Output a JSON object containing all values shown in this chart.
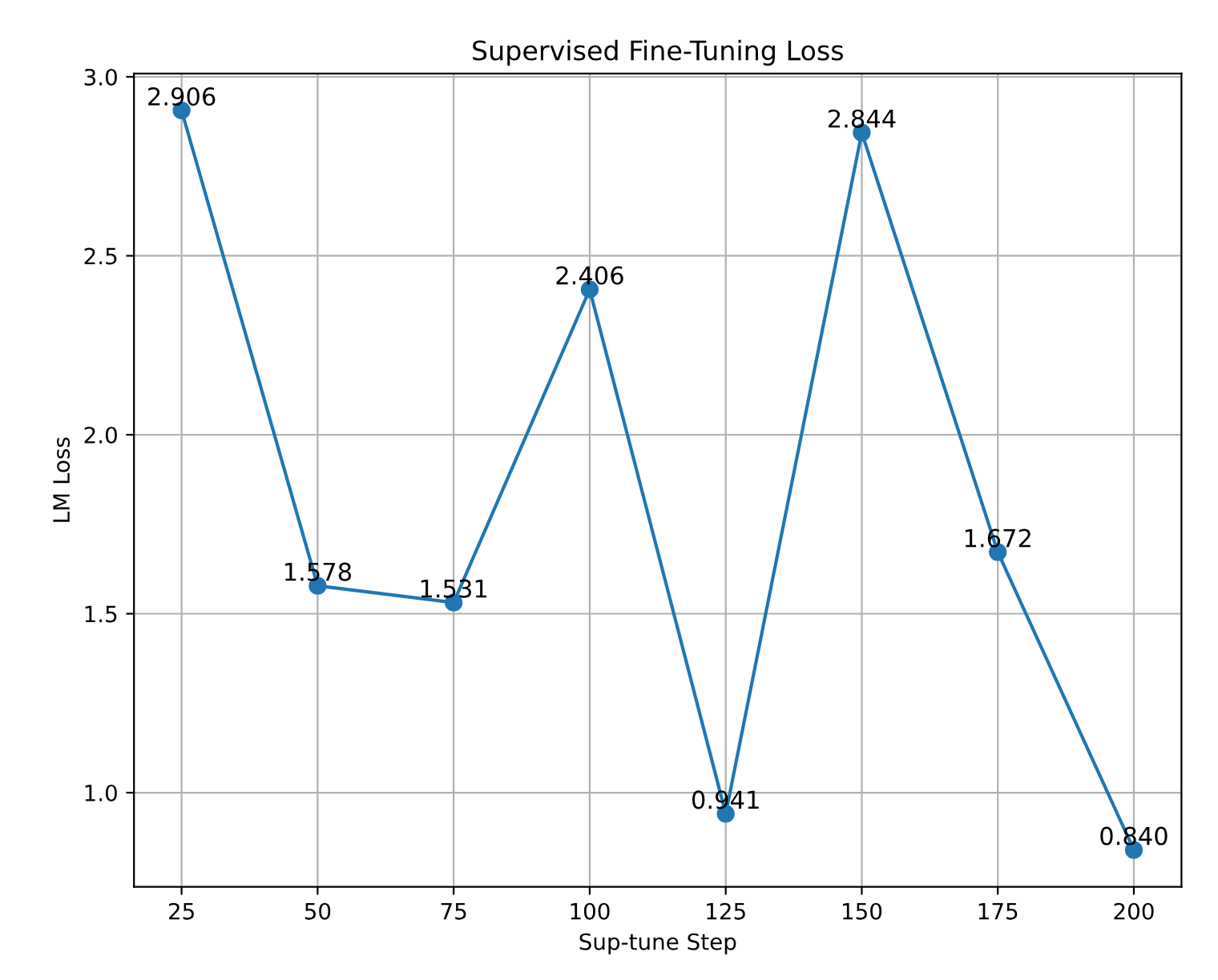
{
  "chart_data": {
    "type": "line",
    "title": "Supervised Fine-Tuning Loss",
    "xlabel": "Sup-tune Step",
    "ylabel": "LM Loss",
    "x": [
      25,
      50,
      75,
      100,
      125,
      150,
      175,
      200
    ],
    "series": [
      {
        "color": "#1f77b4",
        "values": [
          2.906,
          1.578,
          1.531,
          2.406,
          0.941,
          2.844,
          1.672,
          0.84
        ],
        "value_labels": [
          "2.906",
          "1.578",
          "1.531",
          "2.406",
          "0.941",
          "2.844",
          "1.672",
          "0.840"
        ]
      }
    ],
    "xlim": [
      16.25,
      208.75
    ],
    "xticks": [
      25,
      50,
      75,
      100,
      125,
      150,
      175,
      200
    ],
    "ylim": [
      0.7367,
      3.0093
    ],
    "yticks": [
      {
        "value": 1.0,
        "label": "1.0"
      },
      {
        "value": 1.5,
        "label": "1.5"
      },
      {
        "value": 2.0,
        "label": "2.0"
      },
      {
        "value": 2.5,
        "label": "2.5"
      },
      {
        "value": 3.0,
        "label": "3.0"
      }
    ],
    "grid": true,
    "marker": "circle",
    "line_style": "solid"
  }
}
